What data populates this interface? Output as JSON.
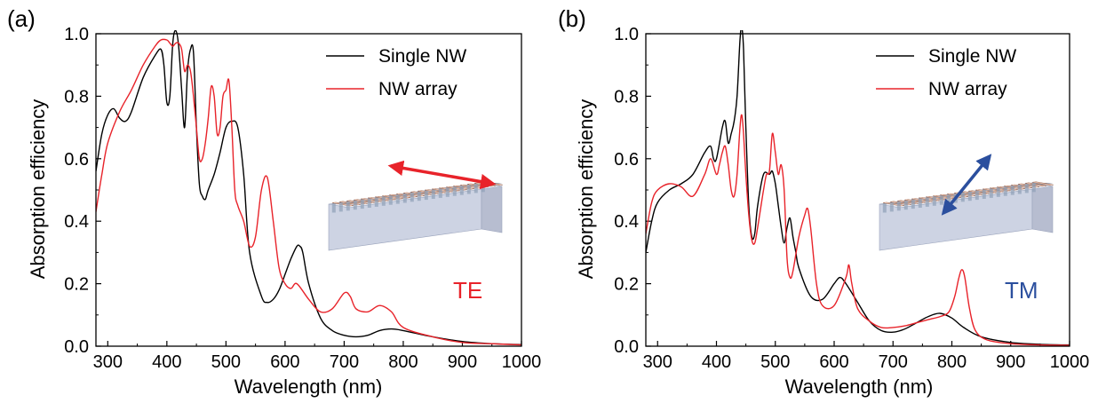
{
  "chart_data": [
    {
      "type": "line",
      "panel_label": "(a)",
      "xlabel": "Wavelength (nm)",
      "ylabel": "Absorption efficiency",
      "xlim": [
        280,
        1000
      ],
      "ylim": [
        0,
        1.0
      ],
      "xticks": [
        300,
        400,
        500,
        600,
        700,
        800,
        900,
        1000
      ],
      "yticks": [
        0.0,
        0.2,
        0.4,
        0.6,
        0.8,
        1.0
      ],
      "xtick_labels": [
        "300",
        "400",
        "500",
        "600",
        "700",
        "800",
        "900",
        "1000"
      ],
      "ytick_labels": [
        "0.0",
        "0.2",
        "0.4",
        "0.6",
        "0.8",
        "1.0"
      ],
      "polarization": "TE",
      "polarization_color": "#e8232a",
      "arrow_color": "#e8232a",
      "legend": "top-right",
      "grid": false,
      "series": [
        {
          "name": "Single NW",
          "color": "#000000",
          "x": [
            280,
            290,
            300,
            310,
            320,
            330,
            340,
            360,
            380,
            390,
            395,
            400,
            405,
            410,
            415,
            420,
            425,
            430,
            435,
            440,
            445,
            450,
            455,
            460,
            465,
            470,
            480,
            490,
            500,
            510,
            520,
            530,
            540,
            560,
            570,
            580,
            590,
            600,
            610,
            620,
            625,
            630,
            640,
            660,
            680,
            700,
            720,
            740,
            760,
            780,
            800,
            850,
            900,
            950,
            1000
          ],
          "y": [
            0.56,
            0.68,
            0.74,
            0.76,
            0.73,
            0.72,
            0.75,
            0.86,
            0.93,
            0.95,
            0.9,
            0.78,
            0.8,
            0.97,
            1.01,
            0.96,
            0.82,
            0.7,
            0.88,
            0.95,
            0.94,
            0.7,
            0.52,
            0.48,
            0.47,
            0.5,
            0.55,
            0.62,
            0.7,
            0.72,
            0.7,
            0.55,
            0.3,
            0.16,
            0.14,
            0.15,
            0.18,
            0.23,
            0.28,
            0.32,
            0.32,
            0.3,
            0.2,
            0.09,
            0.05,
            0.035,
            0.03,
            0.035,
            0.05,
            0.055,
            0.05,
            0.03,
            0.015,
            0.008,
            0.005
          ]
        },
        {
          "name": "NW array",
          "color": "#e8232a",
          "x": [
            280,
            290,
            300,
            320,
            340,
            360,
            380,
            390,
            400,
            405,
            410,
            415,
            420,
            425,
            430,
            435,
            440,
            445,
            450,
            455,
            460,
            465,
            470,
            475,
            480,
            485,
            490,
            495,
            500,
            505,
            510,
            515,
            520,
            530,
            540,
            550,
            560,
            570,
            580,
            590,
            600,
            610,
            620,
            640,
            660,
            680,
            700,
            710,
            720,
            740,
            760,
            780,
            800,
            850,
            900,
            950,
            1000
          ],
          "y": [
            0.43,
            0.55,
            0.65,
            0.75,
            0.82,
            0.9,
            0.96,
            0.98,
            0.98,
            0.97,
            0.96,
            0.97,
            0.97,
            0.95,
            0.88,
            0.9,
            0.88,
            0.8,
            0.7,
            0.6,
            0.6,
            0.65,
            0.73,
            0.83,
            0.8,
            0.68,
            0.7,
            0.8,
            0.82,
            0.85,
            0.7,
            0.5,
            0.45,
            0.4,
            0.32,
            0.35,
            0.5,
            0.54,
            0.4,
            0.25,
            0.2,
            0.185,
            0.2,
            0.15,
            0.11,
            0.12,
            0.17,
            0.16,
            0.12,
            0.11,
            0.13,
            0.11,
            0.06,
            0.03,
            0.012,
            0.008,
            0.004
          ]
        }
      ]
    },
    {
      "type": "line",
      "panel_label": "(b)",
      "xlabel": "Wavelength (nm)",
      "ylabel": "Absorption efficiency",
      "xlim": [
        280,
        1000
      ],
      "ylim": [
        0,
        1.0
      ],
      "xticks": [
        300,
        400,
        500,
        600,
        700,
        800,
        900,
        1000
      ],
      "yticks": [
        0.0,
        0.2,
        0.4,
        0.6,
        0.8,
        1.0
      ],
      "xtick_labels": [
        "300",
        "400",
        "500",
        "600",
        "700",
        "800",
        "900",
        "1000"
      ],
      "ytick_labels": [
        "0.0",
        "0.2",
        "0.4",
        "0.6",
        "0.8",
        "1.0"
      ],
      "polarization": "TM",
      "polarization_color": "#2b4f9e",
      "arrow_color": "#2b4f9e",
      "legend": "top-right",
      "grid": false,
      "series": [
        {
          "name": "Single NW",
          "color": "#000000",
          "x": [
            280,
            290,
            300,
            320,
            340,
            360,
            380,
            390,
            395,
            400,
            410,
            415,
            420,
            425,
            430,
            435,
            440,
            443,
            446,
            450,
            455,
            460,
            465,
            470,
            480,
            490,
            495,
            500,
            505,
            510,
            515,
            520,
            525,
            530,
            535,
            540,
            560,
            580,
            600,
            610,
            620,
            640,
            660,
            680,
            700,
            720,
            740,
            760,
            780,
            800,
            820,
            850,
            900,
            950,
            1000
          ],
          "y": [
            0.3,
            0.4,
            0.46,
            0.5,
            0.52,
            0.55,
            0.62,
            0.64,
            0.6,
            0.6,
            0.7,
            0.72,
            0.65,
            0.68,
            0.72,
            0.8,
            0.98,
            1.02,
            0.95,
            0.7,
            0.45,
            0.35,
            0.36,
            0.45,
            0.55,
            0.55,
            0.56,
            0.52,
            0.45,
            0.38,
            0.33,
            0.38,
            0.41,
            0.35,
            0.3,
            0.25,
            0.16,
            0.15,
            0.2,
            0.22,
            0.2,
            0.14,
            0.08,
            0.05,
            0.045,
            0.055,
            0.075,
            0.095,
            0.105,
            0.09,
            0.06,
            0.03,
            0.012,
            0.006,
            0.004
          ]
        },
        {
          "name": "NW array",
          "color": "#e8232a",
          "x": [
            280,
            290,
            300,
            320,
            340,
            360,
            380,
            390,
            400,
            405,
            410,
            415,
            420,
            425,
            430,
            435,
            440,
            443,
            446,
            450,
            455,
            460,
            465,
            470,
            480,
            485,
            490,
            495,
            500,
            505,
            510,
            515,
            520,
            525,
            530,
            540,
            550,
            555,
            560,
            570,
            580,
            600,
            620,
            625,
            630,
            640,
            660,
            680,
            700,
            720,
            740,
            760,
            780,
            795,
            805,
            812,
            817,
            822,
            830,
            840,
            860,
            900,
            950,
            1000
          ],
          "y": [
            0.36,
            0.46,
            0.5,
            0.52,
            0.51,
            0.48,
            0.55,
            0.6,
            0.55,
            0.58,
            0.62,
            0.64,
            0.58,
            0.5,
            0.48,
            0.55,
            0.7,
            0.74,
            0.68,
            0.55,
            0.42,
            0.34,
            0.33,
            0.38,
            0.5,
            0.55,
            0.56,
            0.68,
            0.62,
            0.55,
            0.58,
            0.5,
            0.28,
            0.22,
            0.24,
            0.35,
            0.42,
            0.44,
            0.38,
            0.2,
            0.13,
            0.13,
            0.22,
            0.26,
            0.2,
            0.12,
            0.08,
            0.06,
            0.06,
            0.065,
            0.075,
            0.085,
            0.095,
            0.11,
            0.16,
            0.22,
            0.245,
            0.22,
            0.12,
            0.05,
            0.02,
            0.008,
            0.004,
            0.003
          ]
        }
      ]
    }
  ]
}
